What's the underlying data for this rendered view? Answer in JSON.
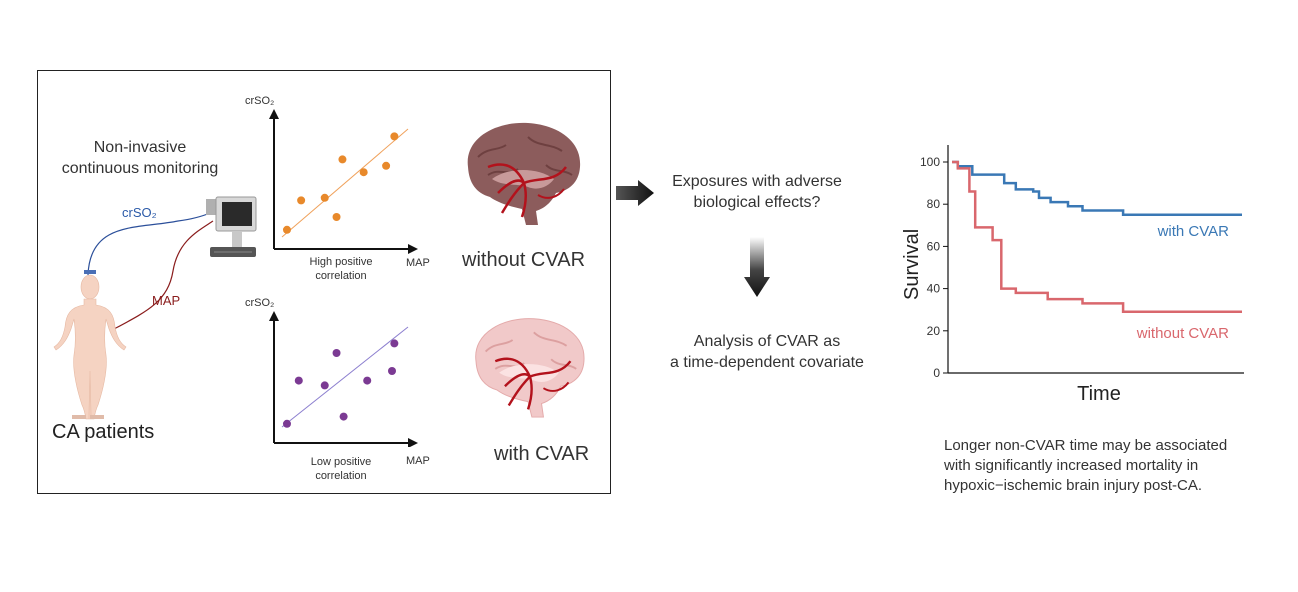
{
  "left_panel": {
    "monitoring_text": [
      "Non-invasive",
      "continuous monitoring"
    ],
    "crso2_wire_label": "crSO₂",
    "map_wire_label": "MAP",
    "patients_label": "CA patients",
    "top_plot": {
      "ylabel": "crSO₂",
      "xlabel": "MAP",
      "caption": [
        "High positive",
        "correlation"
      ],
      "point_color": "#e8892b",
      "points": [
        [
          0.11,
          0.15
        ],
        [
          0.23,
          0.38
        ],
        [
          0.43,
          0.4
        ],
        [
          0.53,
          0.25
        ],
        [
          0.58,
          0.7
        ],
        [
          0.76,
          0.6
        ],
        [
          0.95,
          0.65
        ],
        [
          1.02,
          0.88
        ]
      ]
    },
    "bottom_plot": {
      "ylabel": "crSO₂",
      "xlabel": "MAP",
      "caption": [
        "Low positive",
        "correlation"
      ],
      "point_color": "#7b3a93",
      "points": [
        [
          0.11,
          0.16
        ],
        [
          0.21,
          0.52
        ],
        [
          0.43,
          0.48
        ],
        [
          0.53,
          0.75
        ],
        [
          0.59,
          0.22
        ],
        [
          0.79,
          0.52
        ],
        [
          1.0,
          0.6
        ],
        [
          1.02,
          0.83
        ]
      ]
    },
    "top_brain_label": "without CVAR",
    "bottom_brain_label": "with CVAR"
  },
  "middle": {
    "question_text": [
      "Exposures with adverse",
      "biological effects?"
    ],
    "analysis_text": [
      "Analysis of CVAR as",
      "a time-dependent covariate"
    ]
  },
  "chart_data": {
    "type": "line",
    "title": "",
    "xlabel": "Time",
    "ylabel": "Survival",
    "ylim": [
      0,
      100
    ],
    "yticks": [
      0,
      20,
      40,
      60,
      80,
      100
    ],
    "step": true,
    "series": [
      {
        "name": "with CVAR",
        "color": "#3a78b5",
        "x": [
          0,
          0.02,
          0.07,
          0.18,
          0.22,
          0.28,
          0.3,
          0.34,
          0.4,
          0.45,
          0.57,
          0.59,
          0.7,
          1.0
        ],
        "values": [
          100,
          98,
          94,
          90,
          87,
          86,
          83,
          81,
          79,
          77,
          77,
          75,
          75,
          75
        ]
      },
      {
        "name": "without CVAR",
        "color": "#d9676d",
        "x": [
          0,
          0.02,
          0.06,
          0.08,
          0.14,
          0.17,
          0.22,
          0.26,
          0.33,
          0.45,
          0.57,
          0.59,
          1.0
        ],
        "values": [
          100,
          97,
          86,
          69,
          63,
          40,
          38,
          38,
          35,
          33,
          33,
          29,
          29
        ]
      }
    ]
  },
  "conclusion": [
    "Longer non-CVAR time may be associated",
    "with significantly increased mortality in",
    "hypoxic−ischemic brain injury post-CA."
  ]
}
